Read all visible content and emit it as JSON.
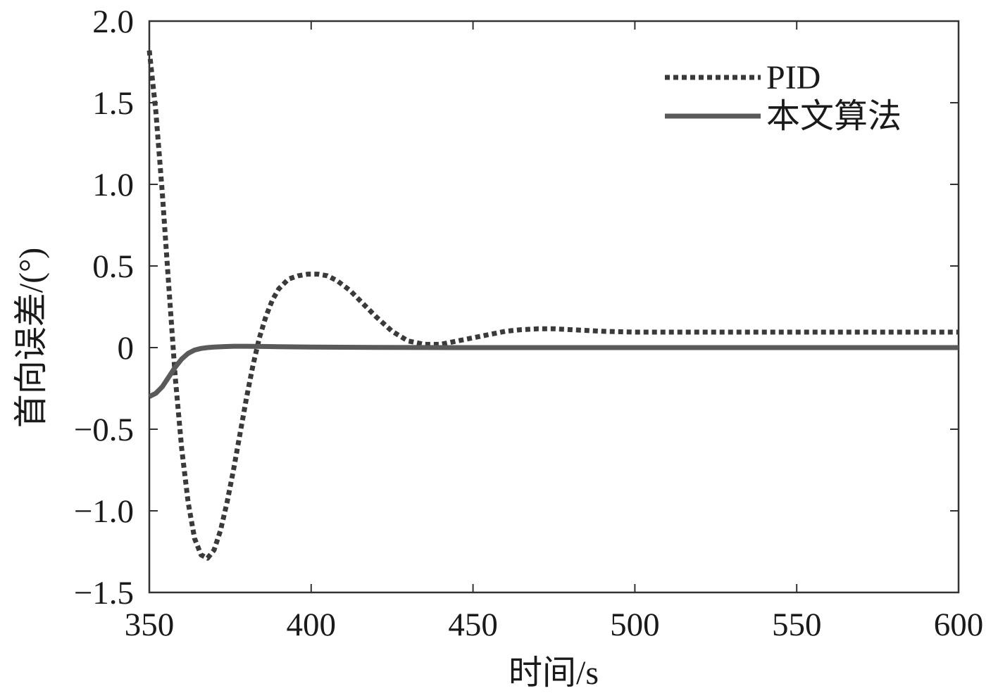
{
  "chart_data": {
    "type": "line",
    "xlabel": "时间/s",
    "ylabel": "首向误差/(°)",
    "xlim": [
      350,
      600
    ],
    "ylim": [
      -1.5,
      2.0
    ],
    "x_ticks": [
      350,
      400,
      450,
      500,
      550,
      600
    ],
    "x_tick_labels": [
      "350",
      "400",
      "450",
      "500",
      "550",
      "600"
    ],
    "y_ticks": [
      -1.5,
      -1.0,
      -0.5,
      0,
      0.5,
      1.0,
      1.5,
      2.0
    ],
    "y_tick_labels": [
      "−1.5",
      "−1.0",
      "−0.5",
      "0",
      "0.5",
      "1.0",
      "1.5",
      "2.0"
    ],
    "grid": false,
    "legend_position": "top-right",
    "series": [
      {
        "name": "PID",
        "style": "dotted",
        "color": "#3a3a3a",
        "x": [
          350,
          352,
          354,
          356,
          358,
          360,
          362,
          364,
          366,
          368,
          370,
          372,
          374,
          376,
          378,
          380,
          382,
          384,
          386,
          388,
          390,
          393,
          396,
          399,
          402,
          405,
          408,
          412,
          416,
          420,
          425,
          430,
          435,
          440,
          445,
          450,
          455,
          460,
          465,
          470,
          475,
          480,
          490,
          500,
          520,
          540,
          560,
          580,
          600
        ],
        "values": [
          1.82,
          1.45,
          0.95,
          0.38,
          -0.18,
          -0.62,
          -0.95,
          -1.17,
          -1.27,
          -1.29,
          -1.24,
          -1.12,
          -0.95,
          -0.75,
          -0.53,
          -0.31,
          -0.11,
          0.06,
          0.19,
          0.29,
          0.36,
          0.42,
          0.44,
          0.45,
          0.45,
          0.44,
          0.41,
          0.35,
          0.27,
          0.19,
          0.1,
          0.04,
          0.02,
          0.02,
          0.04,
          0.06,
          0.08,
          0.1,
          0.11,
          0.115,
          0.115,
          0.11,
          0.1,
          0.095,
          0.095,
          0.095,
          0.095,
          0.095,
          0.095
        ]
      },
      {
        "name": "本文算法",
        "style": "solid",
        "color": "#5a5a5a",
        "x": [
          350,
          352,
          354,
          356,
          358,
          360,
          362,
          364,
          366,
          368,
          370,
          373,
          376,
          380,
          385,
          390,
          400,
          420,
          450,
          500,
          550,
          600
        ],
        "values": [
          -0.3,
          -0.28,
          -0.24,
          -0.18,
          -0.12,
          -0.07,
          -0.035,
          -0.015,
          -0.005,
          0.0,
          0.003,
          0.006,
          0.008,
          0.008,
          0.007,
          0.005,
          0.003,
          0.001,
          0.0,
          0.0,
          0.0,
          0.0
        ]
      }
    ]
  }
}
